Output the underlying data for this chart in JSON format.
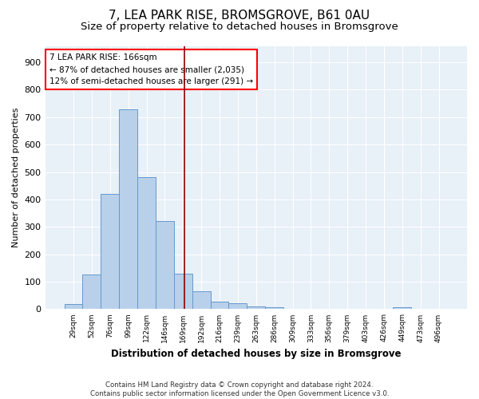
{
  "title1": "7, LEA PARK RISE, BROMSGROVE, B61 0AU",
  "title2": "Size of property relative to detached houses in Bromsgrove",
  "xlabel": "Distribution of detached houses by size in Bromsgrove",
  "ylabel": "Number of detached properties",
  "categories": [
    "29sqm",
    "52sqm",
    "76sqm",
    "99sqm",
    "122sqm",
    "146sqm",
    "169sqm",
    "192sqm",
    "216sqm",
    "239sqm",
    "263sqm",
    "286sqm",
    "309sqm",
    "333sqm",
    "356sqm",
    "379sqm",
    "403sqm",
    "426sqm",
    "449sqm",
    "473sqm",
    "496sqm"
  ],
  "values": [
    20,
    125,
    420,
    730,
    480,
    320,
    130,
    65,
    28,
    22,
    10,
    8,
    0,
    0,
    0,
    0,
    0,
    0,
    8,
    0,
    0
  ],
  "bar_color": "#b8d0ea",
  "bar_edge_color": "#6699cc",
  "redline_x": 6.08,
  "annotation_text": "7 LEA PARK RISE: 166sqm\n← 87% of detached houses are smaller (2,035)\n12% of semi-detached houses are larger (291) →",
  "annotation_box_color": "white",
  "annotation_box_edge": "red",
  "footer": "Contains HM Land Registry data © Crown copyright and database right 2024.\nContains public sector information licensed under the Open Government Licence v3.0.",
  "ylim": [
    0,
    960
  ],
  "yticks": [
    0,
    100,
    200,
    300,
    400,
    500,
    600,
    700,
    800,
    900
  ],
  "bg_color": "#e8f0f8",
  "grid_color": "white",
  "title1_fontsize": 11,
  "title2_fontsize": 9.5
}
